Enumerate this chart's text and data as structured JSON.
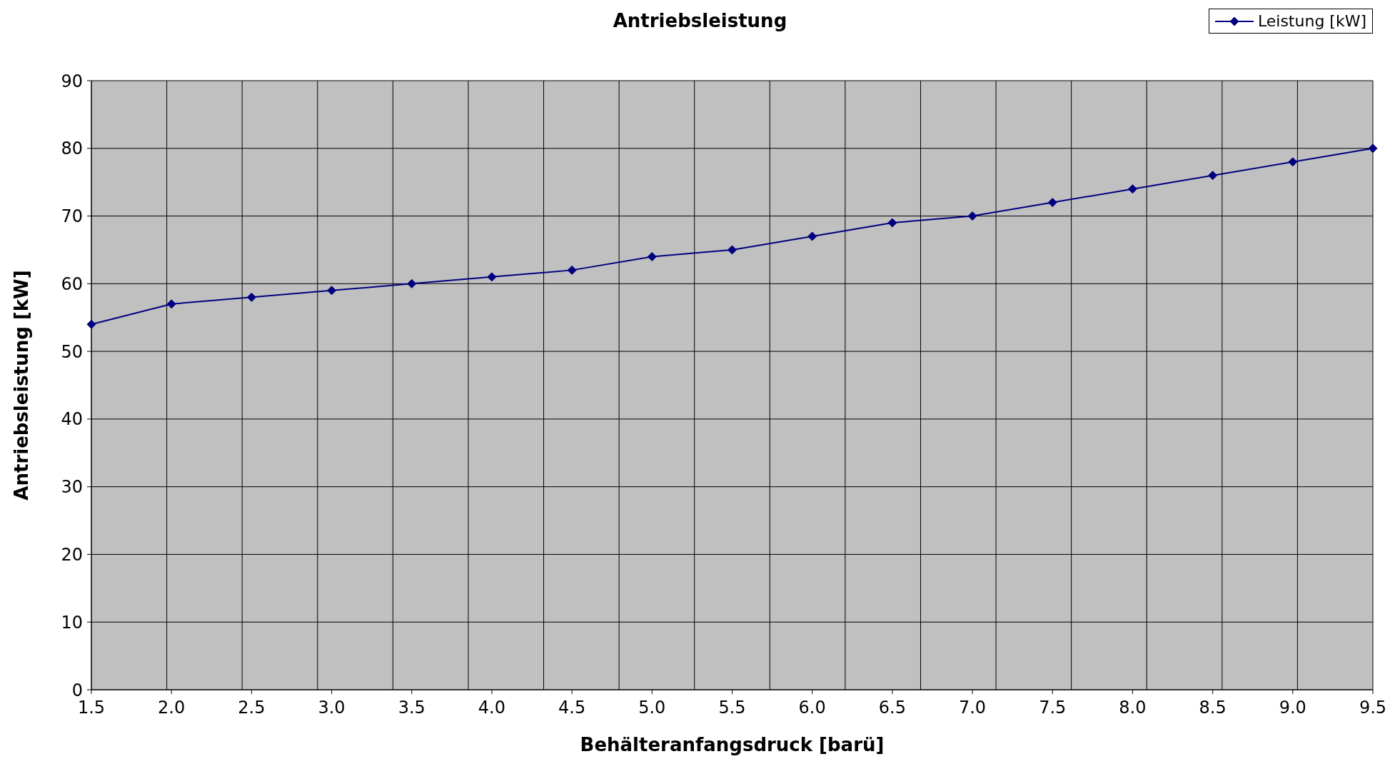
{
  "chart_data": {
    "type": "line",
    "title": "Antriebsleistung",
    "xlabel": "Behälteranfangsdruck [barü]",
    "ylabel": "Antriebsleistung [kW]",
    "categories": [
      "1.5",
      "2.0",
      "2.5",
      "3.0",
      "3.5",
      "4.0",
      "4.5",
      "5.0",
      "5.5",
      "6.0",
      "6.5",
      "7.0",
      "7.5",
      "8.0",
      "8.5",
      "9.0",
      "9.5"
    ],
    "series": [
      {
        "name": "Leistung [kW]",
        "color": "#000080",
        "values": [
          54,
          57,
          58,
          59,
          60,
          61,
          62,
          64,
          65,
          67,
          69,
          70,
          72,
          74,
          76,
          78,
          80
        ]
      }
    ],
    "ylim": [
      0,
      90
    ],
    "yticks": [
      0,
      10,
      20,
      30,
      40,
      50,
      60,
      70,
      80,
      90
    ],
    "grid": true,
    "legend": "top right",
    "marker": "diamond",
    "line_style": "solid"
  }
}
